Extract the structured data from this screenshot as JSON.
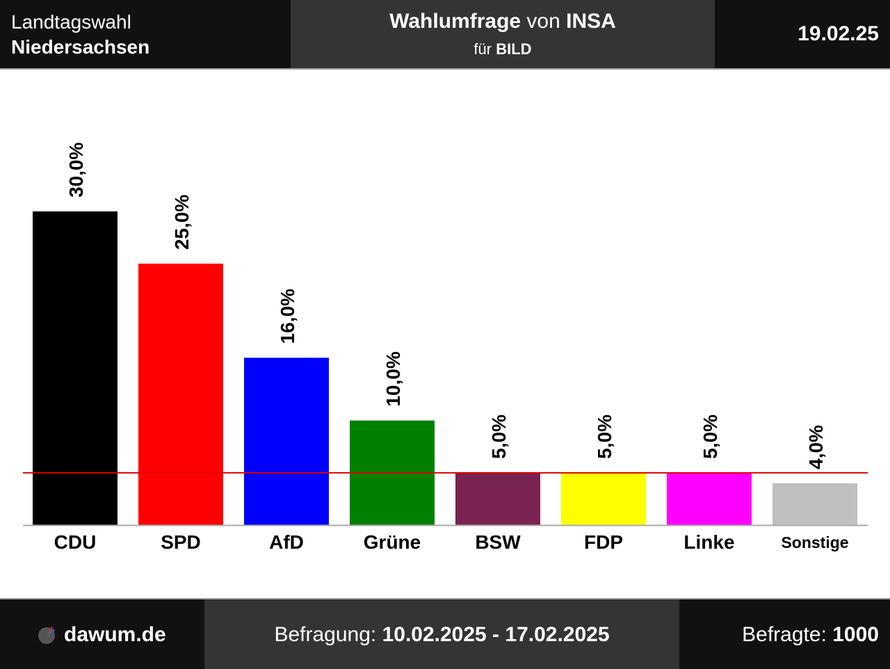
{
  "header": {
    "election_line1": "Landtagswahl",
    "election_line2": "Niedersachsen",
    "poll_word": "Wahlumfrage",
    "poll_by": "von",
    "institute": "INSA",
    "for_word": "für",
    "client": "BILD",
    "date": "19.02.25"
  },
  "footer": {
    "brand": "dawum.de",
    "period_label": "Befragung:",
    "period_value": "10.02.2025 - 17.02.2025",
    "respondents_label": "Befragte:",
    "respondents_value": "1000"
  },
  "colors": {
    "threshold_line": "#dd0000",
    "baseline": "#aaaaaa"
  },
  "chart_data": {
    "type": "bar",
    "categories": [
      "CDU",
      "SPD",
      "AfD",
      "Grüne",
      "BSW",
      "FDP",
      "Linke",
      "Sonstige"
    ],
    "values": [
      30.0,
      25.0,
      16.0,
      10.0,
      5.0,
      5.0,
      5.0,
      4.0
    ],
    "value_labels": [
      "30,0%",
      "25,0%",
      "16,0%",
      "10,0%",
      "5,0%",
      "5,0%",
      "5,0%",
      "4,0%"
    ],
    "colors": [
      "#000000",
      "#ff0000",
      "#0000ff",
      "#008000",
      "#7a2350",
      "#ffff00",
      "#ff00ff",
      "#c0c0c0"
    ],
    "threshold": 5.0,
    "ylim": [
      0,
      30
    ],
    "grid": false,
    "title": "",
    "xlabel": "",
    "ylabel": ""
  }
}
